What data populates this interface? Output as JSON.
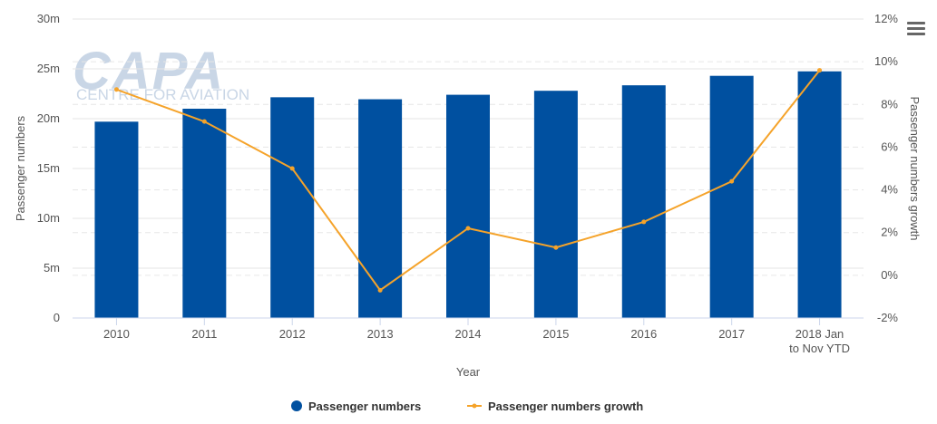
{
  "chart_data": {
    "type": "bar",
    "title": "",
    "xlabel": "Year",
    "ylabel": "Passenger numbers",
    "y2label": "Passenger numbers growth",
    "categories": [
      "2010",
      "2011",
      "2012",
      "2013",
      "2014",
      "2015",
      "2016",
      "2017",
      "2018 Jan to Nov YTD"
    ],
    "ylim": [
      0,
      30000000
    ],
    "y_ticks": [
      "0",
      "5m",
      "10m",
      "15m",
      "20m",
      "25m",
      "30m"
    ],
    "y2lim": [
      -2,
      12
    ],
    "y2_ticks": [
      "-2%",
      "0%",
      "2%",
      "4%",
      "6%",
      "8%",
      "10%",
      "12%"
    ],
    "grid": true,
    "legend_position": "bottom",
    "series": [
      {
        "name": "Passenger numbers",
        "type": "bar",
        "axis": "left",
        "color": "#0050a0",
        "values": [
          19700000,
          21000000,
          22150000,
          21950000,
          22400000,
          22800000,
          23350000,
          24300000,
          24750000
        ]
      },
      {
        "name": "Passenger numbers growth",
        "type": "line",
        "axis": "right",
        "color": "#f5a32a",
        "values": [
          8.7,
          7.2,
          5.0,
          -0.7,
          2.2,
          1.3,
          2.5,
          4.4,
          9.6
        ]
      }
    ]
  },
  "watermark": {
    "logo_text": "CAPA",
    "logo_subtext": "CENTRE FOR AVIATION"
  },
  "menu": {
    "icon": "hamburger-menu-icon"
  }
}
